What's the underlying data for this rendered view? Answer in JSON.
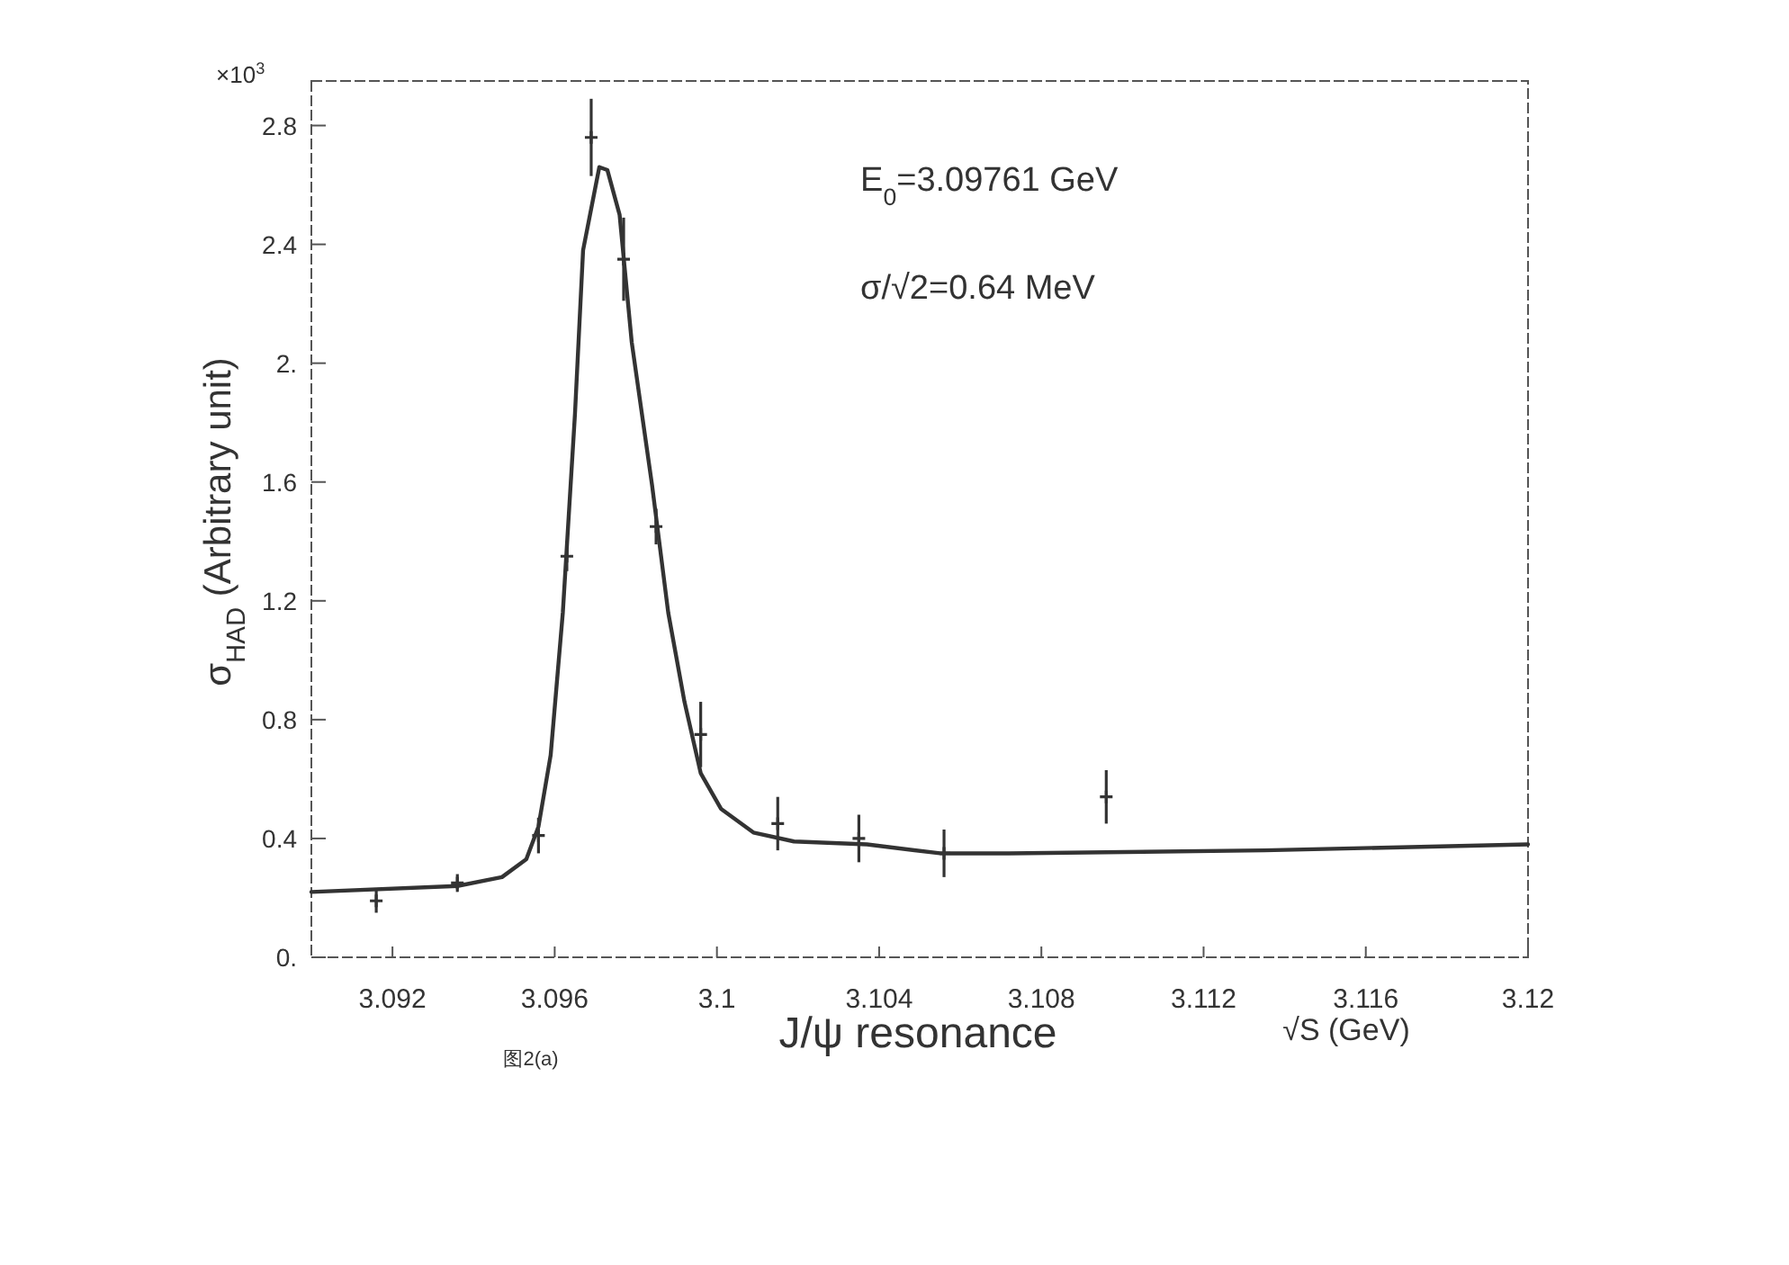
{
  "chart_data": {
    "type": "line",
    "xlabel": "√S (GeV)",
    "ylabel": "σ$_{HAD}$ (Arbitrary unit)",
    "annotations": [
      "×10$^{3}$",
      "E$_{0}$=3.09761 GeV",
      "σ/√2=0.64 MeV",
      "J/ψ resonance",
      "图2(a)"
    ],
    "xlim": [
      3.09,
      3.12
    ],
    "ylim": [
      0,
      2.95
    ],
    "xticks": [
      3.092,
      3.096,
      3.1,
      3.104,
      3.108,
      3.112,
      3.116,
      3.12
    ],
    "yticks": [
      {
        "value": 0,
        "label": "0."
      },
      0.4,
      0.8,
      1.2,
      1.6,
      {
        "value": 2,
        "label": "2."
      },
      2.4,
      2.8
    ],
    "grid": false,
    "series": [
      {
        "color": "#333333",
        "x": [
          3.09,
          3.0936,
          3.0947,
          3.0953,
          3.0956,
          3.0959,
          3.0962,
          3.0965,
          3.0967,
          3.0971,
          3.0973,
          3.0976,
          3.0979,
          3.0984,
          3.0988,
          3.0992,
          3.0996,
          3.1001,
          3.1009,
          3.1019,
          3.1037,
          3.1055,
          3.1072,
          3.1135,
          3.12
        ],
        "values": [
          0.22,
          0.24,
          0.27,
          0.33,
          0.44,
          0.68,
          1.16,
          1.83,
          2.38,
          2.66,
          2.65,
          2.5,
          2.07,
          1.59,
          1.16,
          0.86,
          0.62,
          0.5,
          0.42,
          0.39,
          0.38,
          0.35,
          0.35,
          0.36,
          0.38
        ]
      },
      {
        "type": "scatter",
        "marker": "cross",
        "color": "#333333",
        "x": [
          3.0916,
          3.0936,
          3.0956,
          3.0963,
          3.0969,
          3.0977,
          3.0985,
          3.0996,
          3.1015,
          3.1035,
          3.1056,
          3.1096
        ],
        "values": [
          0.19,
          0.25,
          0.41,
          1.35,
          2.76,
          2.35,
          1.45,
          0.75,
          0.45,
          0.4,
          0.35,
          0.54
        ],
        "errors": [
          0.04,
          0.03,
          0.06,
          0.05,
          0.13,
          0.14,
          0.06,
          0.11,
          0.09,
          0.08,
          0.08,
          0.09
        ]
      }
    ]
  }
}
